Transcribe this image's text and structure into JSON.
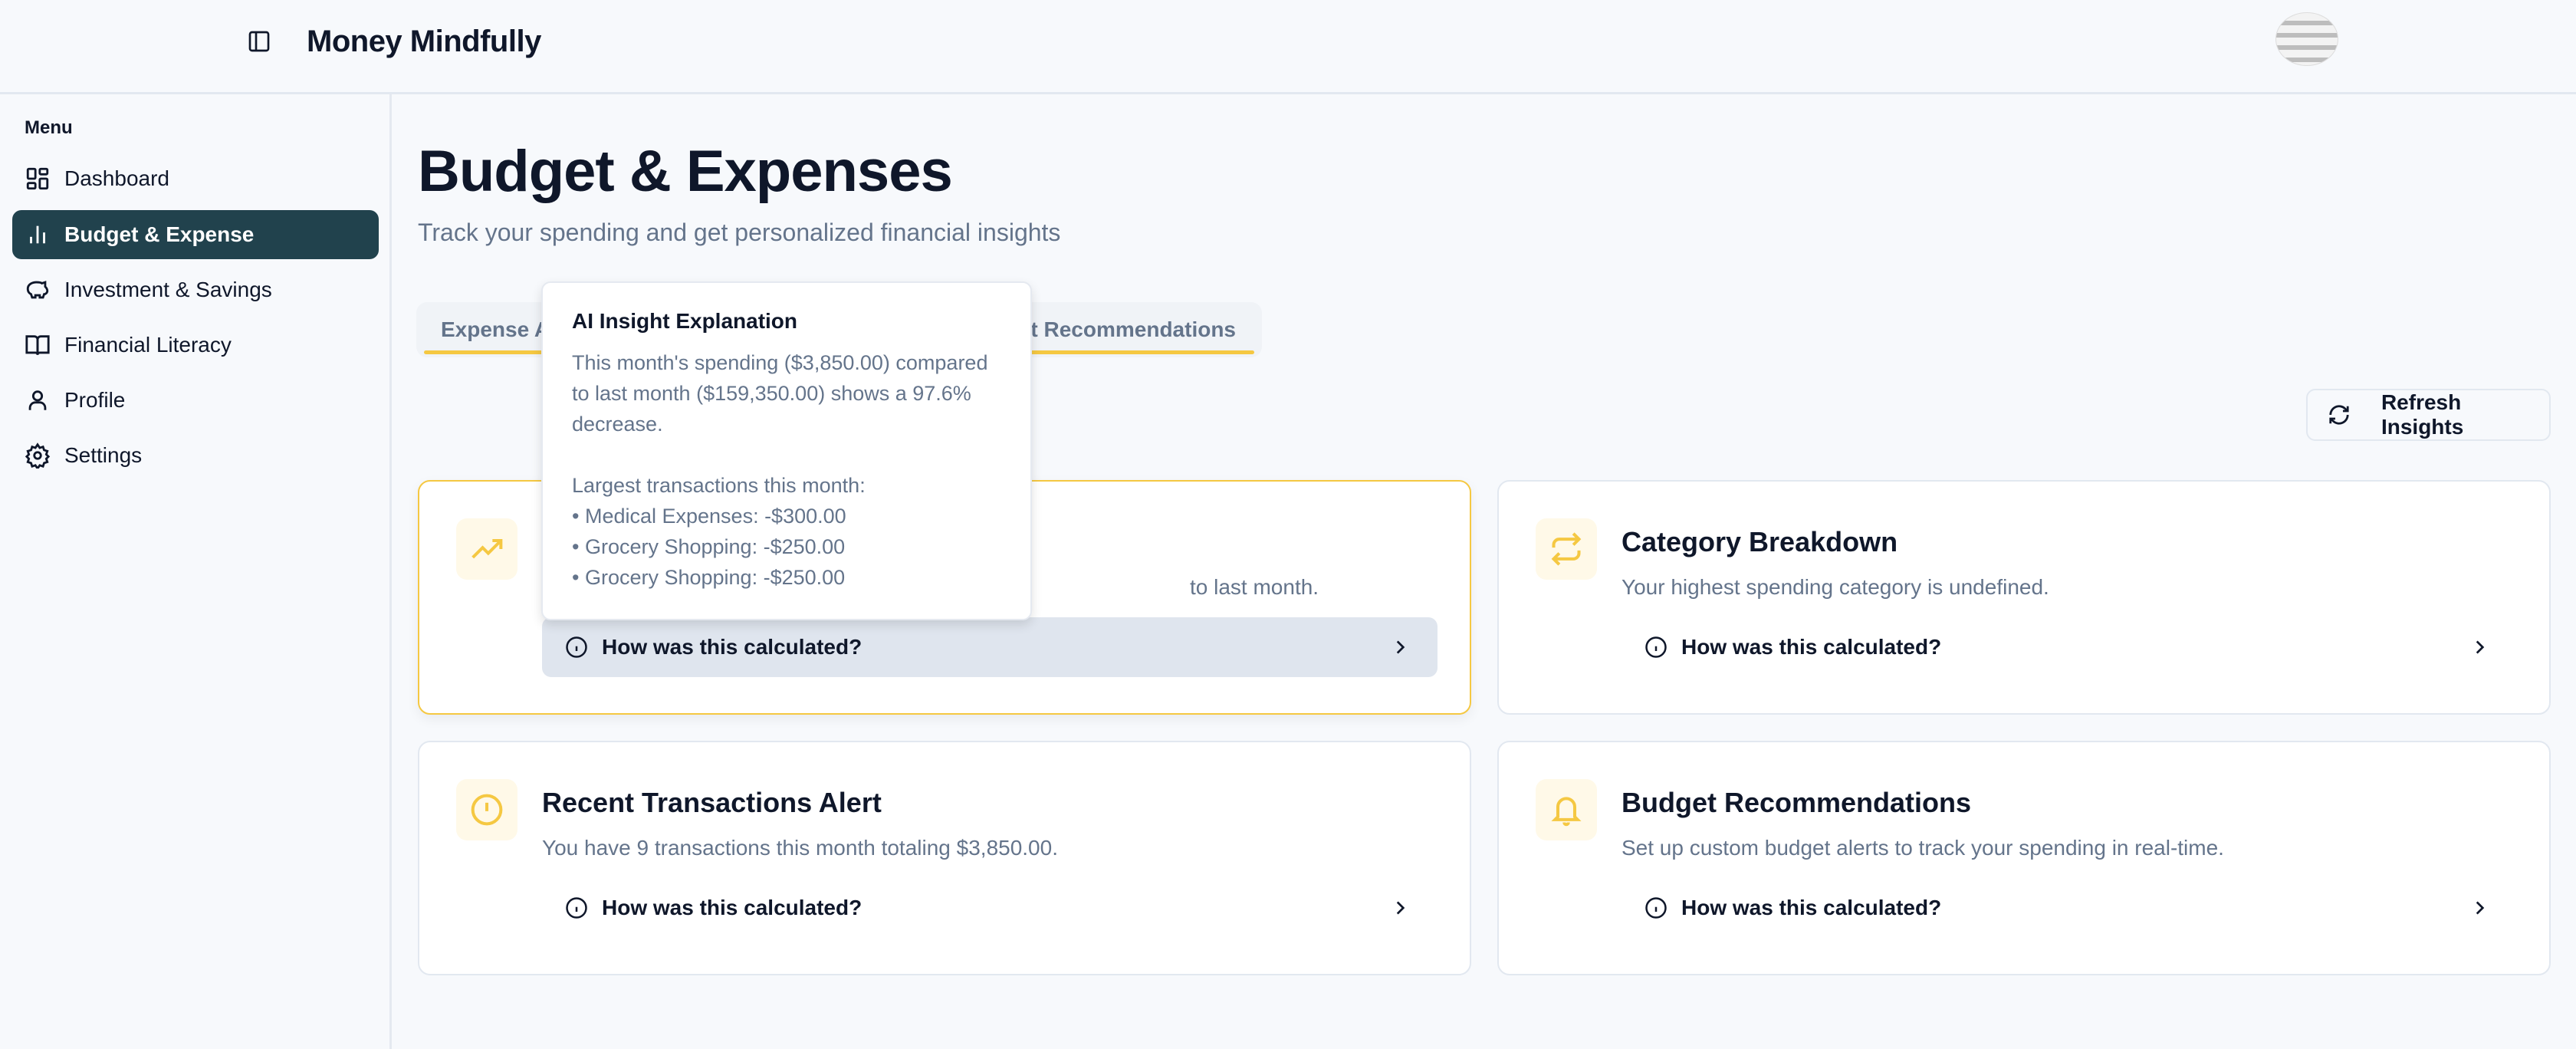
{
  "app": {
    "title": "Money Mindfully"
  },
  "sidebar": {
    "menu_label": "Menu",
    "items": [
      {
        "label": "Dashboard",
        "icon": "dashboard-icon"
      },
      {
        "label": "Budget & Expense",
        "icon": "bar-chart-icon",
        "active": true
      },
      {
        "label": "Investment & Savings",
        "icon": "piggy-bank-icon"
      },
      {
        "label": "Financial Literacy",
        "icon": "book-icon"
      },
      {
        "label": "Profile",
        "icon": "user-icon"
      },
      {
        "label": "Settings",
        "icon": "gear-icon"
      }
    ]
  },
  "page": {
    "title": "Budget & Expenses",
    "subtitle": "Track your spending and get personalized financial insights"
  },
  "tabs": [
    "Expense A",
    "ct Recommendations"
  ],
  "refresh_label": "Refresh Insights",
  "accent": "#f5c842",
  "cards": [
    {
      "title": "",
      "description": "to last month.",
      "icon": "trending-up-icon",
      "how": "How was this calculated?"
    },
    {
      "title": "Category Breakdown",
      "description": "Your highest spending category is undefined.",
      "icon": "repeat-icon",
      "how": "How was this calculated?"
    },
    {
      "title": "Recent Transactions Alert",
      "description": "You have 9 transactions this month totaling $3,850.00.",
      "icon": "alert-circle-icon",
      "how": "How was this calculated?"
    },
    {
      "title": "Budget Recommendations",
      "description": "Set up custom budget alerts to track your spending in real-time.",
      "icon": "bell-icon",
      "how": "How was this calculated?"
    }
  ],
  "tooltip": {
    "title": "AI Insight Explanation",
    "lines": [
      "This month's spending ($3,850.00) compared",
      "to last month ($159,350.00) shows a 97.6%",
      "decrease.",
      "",
      "Largest transactions this month:",
      "• Medical Expenses: -$300.00",
      "• Grocery Shopping: -$250.00",
      "• Grocery Shopping: -$250.00"
    ]
  }
}
